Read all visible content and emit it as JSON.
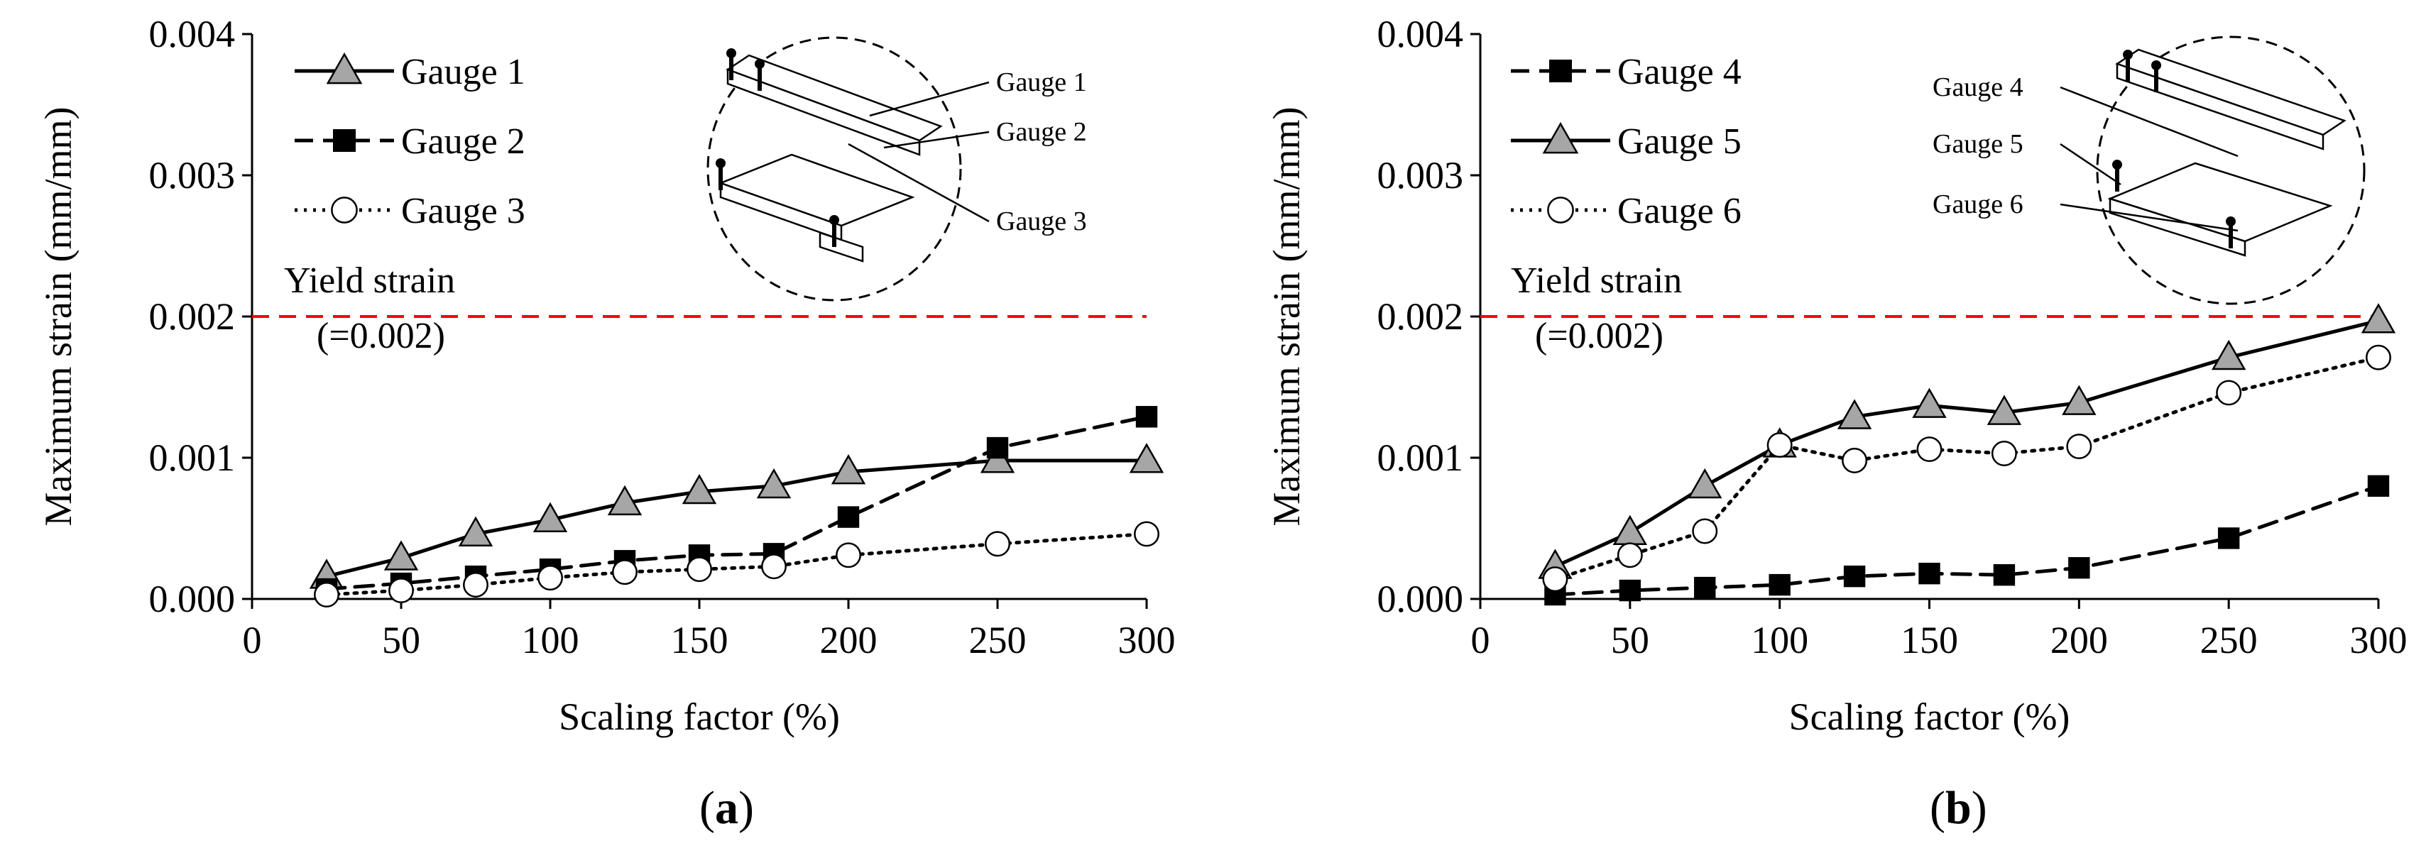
{
  "colors": {
    "yield_line": "#ff0000",
    "triangle_fill": "#a6a6a6",
    "square_fill": "#000000",
    "circle_fill": "#ffffff",
    "axis": "#000000"
  },
  "chart_data": [
    {
      "type": "line",
      "panel_label": {
        "open": "(",
        "letter": "a",
        "close": ")"
      },
      "xlabel": "Scaling factor (%)",
      "ylabel": "Maximum strain (mm/mm)",
      "xlim": [
        0,
        300
      ],
      "ylim": [
        0.0,
        0.004
      ],
      "x_ticks": [
        "0",
        "50",
        "100",
        "150",
        "200",
        "250",
        "300"
      ],
      "y_ticks": [
        "0.000",
        "0.001",
        "0.002",
        "0.003",
        "0.004"
      ],
      "grid": false,
      "legend_position": "top-left",
      "yield": {
        "value": 0.002,
        "label_line1": "Yield strain",
        "label_line2": "(=0.002)"
      },
      "series": [
        {
          "name": "Gauge 1",
          "marker": "triangle",
          "line": "solid",
          "x": [
            25,
            50,
            75,
            100,
            125,
            150,
            175,
            200,
            250,
            300
          ],
          "values": [
            0.00016,
            0.00029,
            0.00046,
            0.00056,
            0.00068,
            0.00076,
            0.0008,
            0.0009,
            0.00098,
            0.00098
          ]
        },
        {
          "name": "Gauge 2",
          "marker": "square",
          "line": "dashed",
          "x": [
            25,
            50,
            75,
            100,
            125,
            150,
            175,
            200,
            250,
            300
          ],
          "values": [
            7e-05,
            0.00011,
            0.00016,
            0.00021,
            0.00027,
            0.00031,
            0.00032,
            0.00058,
            0.00107,
            0.00129
          ]
        },
        {
          "name": "Gauge 3",
          "marker": "circle",
          "line": "dotted",
          "x": [
            25,
            50,
            75,
            100,
            125,
            150,
            175,
            200,
            250,
            300
          ],
          "values": [
            3e-05,
            6e-05,
            0.0001,
            0.00015,
            0.00019,
            0.00021,
            0.00023,
            0.00031,
            0.00039,
            0.00046
          ]
        }
      ],
      "inset": {
        "labels": [
          "Gauge 1",
          "Gauge 2",
          "Gauge 3"
        ]
      }
    },
    {
      "type": "line",
      "panel_label": {
        "open": "(",
        "letter": "b",
        "close": ")"
      },
      "xlabel": "Scaling factor (%)",
      "ylabel": "Maximum strain (mm/mm)",
      "xlim": [
        0,
        300
      ],
      "ylim": [
        0.0,
        0.004
      ],
      "x_ticks": [
        "0",
        "50",
        "100",
        "150",
        "200",
        "250",
        "300"
      ],
      "y_ticks": [
        "0.000",
        "0.001",
        "0.002",
        "0.003",
        "0.004"
      ],
      "grid": false,
      "legend_position": "top-left",
      "yield": {
        "value": 0.002,
        "label_line1": "Yield strain",
        "label_line2": "(=0.002)"
      },
      "series": [
        {
          "name": "Gauge 4",
          "marker": "square",
          "line": "dashed",
          "x": [
            25,
            50,
            75,
            100,
            125,
            150,
            175,
            200,
            250,
            300
          ],
          "values": [
            3e-05,
            6e-05,
            8e-05,
            0.0001,
            0.00016,
            0.00018,
            0.00017,
            0.00022,
            0.00043,
            0.0008
          ]
        },
        {
          "name": "Gauge 5",
          "marker": "triangle",
          "line": "solid",
          "x": [
            25,
            50,
            75,
            100,
            125,
            150,
            175,
            200,
            250,
            300
          ],
          "values": [
            0.00023,
            0.00047,
            0.0008,
            0.00109,
            0.00129,
            0.00137,
            0.00132,
            0.00139,
            0.00171,
            0.00197
          ]
        },
        {
          "name": "Gauge 6",
          "marker": "circle",
          "line": "dotted",
          "x": [
            25,
            50,
            75,
            100,
            125,
            150,
            175,
            200,
            250,
            300
          ],
          "values": [
            0.00014,
            0.00031,
            0.00048,
            0.00109,
            0.00098,
            0.00106,
            0.00103,
            0.00108,
            0.00146,
            0.00171
          ]
        }
      ],
      "inset": {
        "labels": [
          "Gauge 4",
          "Gauge 5",
          "Gauge 6"
        ]
      }
    }
  ]
}
